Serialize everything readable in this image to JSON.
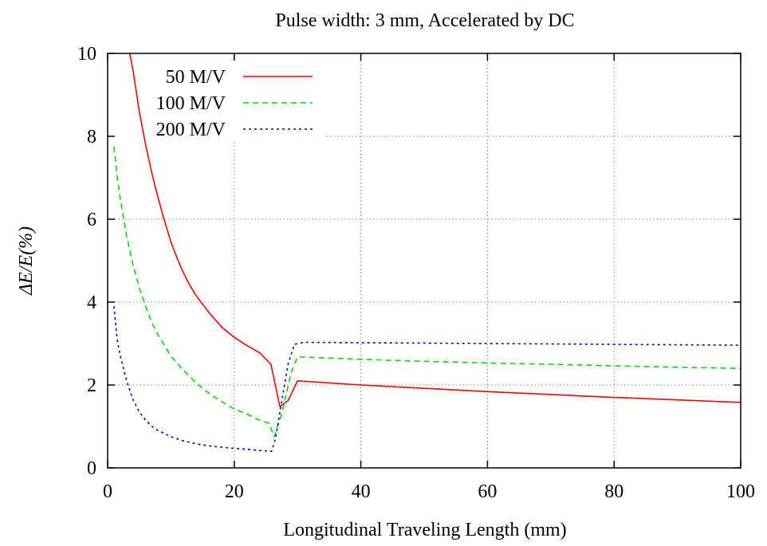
{
  "chart_data": {
    "type": "line",
    "title": "Pulse width: 3 mm, Accelerated by DC",
    "xlabel": "Longitudinal Traveling Length (mm)",
    "ylabel": "ΔE/E(%)",
    "xlim": [
      0,
      100
    ],
    "ylim": [
      0,
      10
    ],
    "xticks": [
      0,
      20,
      40,
      60,
      80,
      100
    ],
    "yticks": [
      0,
      2,
      4,
      6,
      8,
      10
    ],
    "grid": true,
    "legend_position": "top-left",
    "series": [
      {
        "name": "50 M/V",
        "color": "#ff0000",
        "dash": "solid",
        "points": [
          [
            3.5,
            10.0
          ],
          [
            4,
            9.6
          ],
          [
            5,
            8.6
          ],
          [
            6,
            7.8
          ],
          [
            7,
            7.1
          ],
          [
            8,
            6.5
          ],
          [
            9,
            5.95
          ],
          [
            10,
            5.45
          ],
          [
            11,
            5.05
          ],
          [
            12,
            4.7
          ],
          [
            13,
            4.4
          ],
          [
            14,
            4.15
          ],
          [
            15,
            3.95
          ],
          [
            16,
            3.75
          ],
          [
            18,
            3.4
          ],
          [
            20,
            3.15
          ],
          [
            22,
            2.95
          ],
          [
            24,
            2.78
          ],
          [
            25.8,
            2.5
          ],
          [
            27.2,
            1.48
          ],
          [
            28.5,
            1.62
          ],
          [
            30,
            2.1
          ],
          [
            40,
            2.0
          ],
          [
            50,
            1.92
          ],
          [
            60,
            1.84
          ],
          [
            70,
            1.77
          ],
          [
            80,
            1.7
          ],
          [
            90,
            1.64
          ],
          [
            100,
            1.58
          ]
        ]
      },
      {
        "name": "100 M/V",
        "color": "#00dd00",
        "dash": "dashed",
        "points": [
          [
            1,
            7.75
          ],
          [
            1.5,
            7.05
          ],
          [
            2,
            6.5
          ],
          [
            3,
            5.6
          ],
          [
            4,
            4.9
          ],
          [
            5,
            4.35
          ],
          [
            6,
            3.9
          ],
          [
            7,
            3.5
          ],
          [
            8,
            3.2
          ],
          [
            9,
            2.95
          ],
          [
            10,
            2.7
          ],
          [
            12,
            2.35
          ],
          [
            14,
            2.05
          ],
          [
            16,
            1.8
          ],
          [
            18,
            1.6
          ],
          [
            20,
            1.42
          ],
          [
            22,
            1.3
          ],
          [
            24,
            1.15
          ],
          [
            25.5,
            1.08
          ],
          [
            26.3,
            0.75
          ],
          [
            27.5,
            1.3
          ],
          [
            29,
            2.3
          ],
          [
            30,
            2.68
          ],
          [
            40,
            2.62
          ],
          [
            50,
            2.57
          ],
          [
            60,
            2.53
          ],
          [
            70,
            2.5
          ],
          [
            80,
            2.46
          ],
          [
            90,
            2.43
          ],
          [
            100,
            2.4
          ]
        ]
      },
      {
        "name": "200 M/V",
        "color": "#0000dd",
        "dash": "dotted",
        "points": [
          [
            1,
            3.9
          ],
          [
            1.5,
            3.1
          ],
          [
            2,
            2.7
          ],
          [
            3,
            2.1
          ],
          [
            4,
            1.65
          ],
          [
            5,
            1.35
          ],
          [
            6,
            1.15
          ],
          [
            7,
            1.0
          ],
          [
            8,
            0.9
          ],
          [
            10,
            0.75
          ],
          [
            12,
            0.65
          ],
          [
            14,
            0.58
          ],
          [
            16,
            0.53
          ],
          [
            18,
            0.5
          ],
          [
            20,
            0.47
          ],
          [
            22,
            0.45
          ],
          [
            24,
            0.42
          ],
          [
            25.9,
            0.4
          ],
          [
            26.5,
            0.7
          ],
          [
            27.5,
            1.6
          ],
          [
            28.5,
            2.5
          ],
          [
            29.5,
            2.98
          ],
          [
            31,
            3.03
          ],
          [
            40,
            3.02
          ],
          [
            50,
            3.01
          ],
          [
            60,
            3.0
          ],
          [
            70,
            2.99
          ],
          [
            80,
            2.98
          ],
          [
            90,
            2.97
          ],
          [
            100,
            2.96
          ]
        ]
      }
    ]
  }
}
